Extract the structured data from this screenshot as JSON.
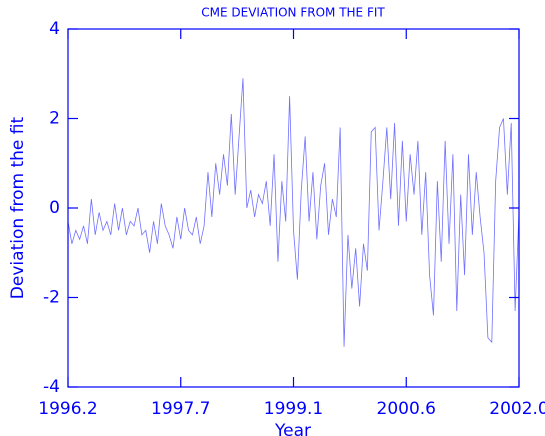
{
  "chart_data": {
    "type": "line",
    "title": "CME DEVIATION FROM THE FIT",
    "x_label": "Year",
    "y_label": "Deviation from the fit",
    "xlim": [
      1996.2,
      2002.0
    ],
    "xticks": [
      1996.2,
      {
        "value": 1997.65,
        "label": "1997.7"
      },
      1999.1,
      {
        "value": 2000.55,
        "label": "2000.6"
      },
      {
        "value": 2002.0,
        "label": "2002.0"
      }
    ],
    "ylim": [
      -4,
      4
    ],
    "yticks": [
      -4,
      -2,
      0,
      2,
      4
    ],
    "grid": false,
    "axis_color": "#0000ff",
    "series": [
      {
        "name": "Deviation",
        "color": "#7070ff",
        "x": [
          1996.2,
          1996.25,
          1996.3,
          1996.35,
          1996.4,
          1996.45,
          1996.5,
          1996.55,
          1996.6,
          1996.65,
          1996.7,
          1996.75,
          1996.8,
          1996.85,
          1996.9,
          1996.95,
          1997.0,
          1997.05,
          1997.1,
          1997.15,
          1997.2,
          1997.25,
          1997.3,
          1997.35,
          1997.4,
          1997.45,
          1997.5,
          1997.55,
          1997.6,
          1997.65,
          1997.7,
          1997.75,
          1997.8,
          1997.85,
          1997.9,
          1997.95,
          1998.0,
          1998.05,
          1998.1,
          1998.15,
          1998.2,
          1998.25,
          1998.3,
          1998.35,
          1998.4,
          1998.45,
          1998.5,
          1998.55,
          1998.6,
          1998.65,
          1998.7,
          1998.75,
          1998.8,
          1998.85,
          1998.9,
          1998.95,
          1999.0,
          1999.05,
          1999.1,
          1999.15,
          1999.2,
          1999.25,
          1999.3,
          1999.35,
          1999.4,
          1999.45,
          1999.5,
          1999.55,
          1999.6,
          1999.65,
          1999.7,
          1999.75,
          1999.8,
          1999.85,
          1999.9,
          1999.95,
          2000.0,
          2000.05,
          2000.1,
          2000.15,
          2000.2,
          2000.25,
          2000.3,
          2000.35,
          2000.4,
          2000.45,
          2000.5,
          2000.55,
          2000.6,
          2000.65,
          2000.7,
          2000.75,
          2000.8,
          2000.85,
          2000.9,
          2000.95,
          2001.0,
          2001.05,
          2001.1,
          2001.15,
          2001.2,
          2001.25,
          2001.3,
          2001.35,
          2001.4,
          2001.45,
          2001.5,
          2001.55,
          2001.6,
          2001.65,
          2001.7,
          2001.75,
          2001.8,
          2001.85,
          2001.9,
          2001.95,
          2002.0
        ],
        "values": [
          -0.3,
          -0.8,
          -0.5,
          -0.7,
          -0.4,
          -0.8,
          0.2,
          -0.6,
          -0.1,
          -0.5,
          -0.3,
          -0.6,
          0.1,
          -0.5,
          0.0,
          -0.6,
          -0.3,
          -0.4,
          0.0,
          -0.6,
          -0.5,
          -1.0,
          -0.3,
          -0.8,
          0.1,
          -0.4,
          -0.6,
          -0.9,
          -0.2,
          -0.7,
          0.0,
          -0.5,
          -0.6,
          -0.2,
          -0.8,
          -0.4,
          0.8,
          -0.2,
          1.0,
          0.3,
          1.2,
          0.5,
          2.1,
          0.3,
          1.6,
          2.9,
          0.0,
          0.4,
          -0.2,
          0.3,
          0.1,
          0.6,
          -0.4,
          1.2,
          -1.2,
          0.6,
          -0.3,
          2.5,
          -0.5,
          -1.6,
          0.4,
          1.6,
          -0.3,
          0.8,
          -0.7,
          0.5,
          1.0,
          -0.6,
          0.2,
          -0.2,
          1.8,
          -3.1,
          -0.6,
          -1.8,
          -0.9,
          -2.2,
          -0.8,
          -1.4,
          1.7,
          1.8,
          -0.5,
          0.6,
          1.8,
          0.2,
          1.9,
          -0.4,
          1.5,
          -0.3,
          1.2,
          0.3,
          1.5,
          -0.6,
          0.8,
          -1.5,
          -2.4,
          0.6,
          -1.2,
          1.5,
          -0.8,
          1.2,
          -2.3,
          0.3,
          -1.5,
          1.2,
          -0.6,
          0.8,
          -0.2,
          -1.0,
          -2.9,
          -3.0,
          0.6,
          1.8,
          2.0,
          0.3,
          1.9,
          -2.3,
          -0.1
        ]
      }
    ]
  }
}
